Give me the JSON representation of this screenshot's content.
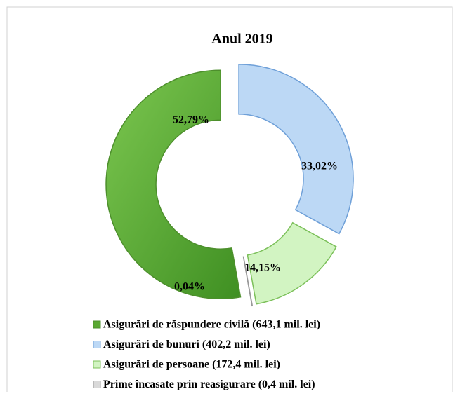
{
  "chart_data": {
    "type": "donut",
    "title": "Anul 2019",
    "categories": [
      "Asigurări de răspundere civilă (643,1 mil. lei)",
      "Asigurări de bunuri (402,2 mil. lei)",
      "Asigurări de persoane (172,4 mil. lei)",
      "Prime încasate prin reasigurare (0,4 mil. lei)"
    ],
    "values": [
      52.79,
      33.02,
      14.15,
      0.04
    ],
    "value_labels": [
      "52,79%",
      "33,02%",
      "14,15%",
      "0,04%"
    ],
    "colors": [
      "#5aa832",
      "#bcd8f5",
      "#d2f4c2",
      "#d9d9d9"
    ],
    "legend": "bottom"
  }
}
